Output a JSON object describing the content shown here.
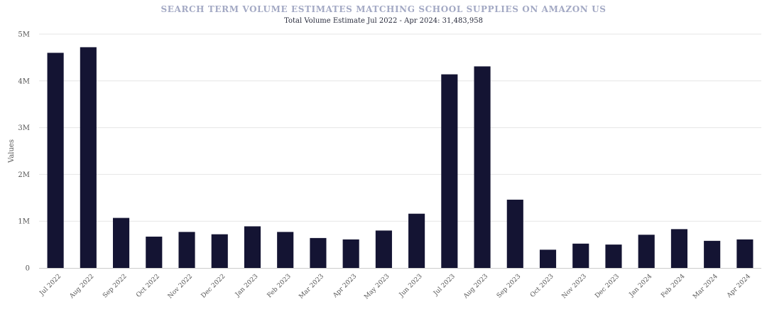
{
  "chart_data": {
    "type": "bar",
    "title": "SEARCH TERM VOLUME ESTIMATES MATCHING SCHOOL SUPPLIES ON AMAZON US",
    "subtitle": "Total Volume Estimate Jul 2022 - Apr 2024: 31,483,958",
    "xlabel": "",
    "ylabel": "Values",
    "ylim": [
      0,
      5000000
    ],
    "yticks": [
      0,
      1000000,
      2000000,
      3000000,
      4000000,
      5000000
    ],
    "ytick_labels": [
      "0",
      "1M",
      "2M",
      "3M",
      "4M",
      "5M"
    ],
    "grid": true,
    "legend": "none",
    "colors": {
      "bar": "#141433",
      "grid": "#e6e6e6",
      "title": "#a3a9c4"
    },
    "categories": [
      "Jul 2022",
      "Aug 2022",
      "Sep 2022",
      "Oct 2022",
      "Nov 2022",
      "Dec 2022",
      "Jan 2023",
      "Feb 2023",
      "Mar 2023",
      "Apr 2023",
      "May 2023",
      "Jun 2023",
      "Jul 2023",
      "Aug 2023",
      "Sep 2023",
      "Oct 2023",
      "Nov 2023",
      "Dec 2023",
      "Jan 2024",
      "Feb 2024",
      "Mar 2024",
      "Apr 2024"
    ],
    "values": [
      4600000,
      4720000,
      1070000,
      670000,
      770000,
      720000,
      890000,
      770000,
      640000,
      610000,
      800000,
      1160000,
      4140000,
      4310000,
      1460000,
      390000,
      520000,
      500000,
      710000,
      830000,
      580000,
      610000
    ]
  }
}
